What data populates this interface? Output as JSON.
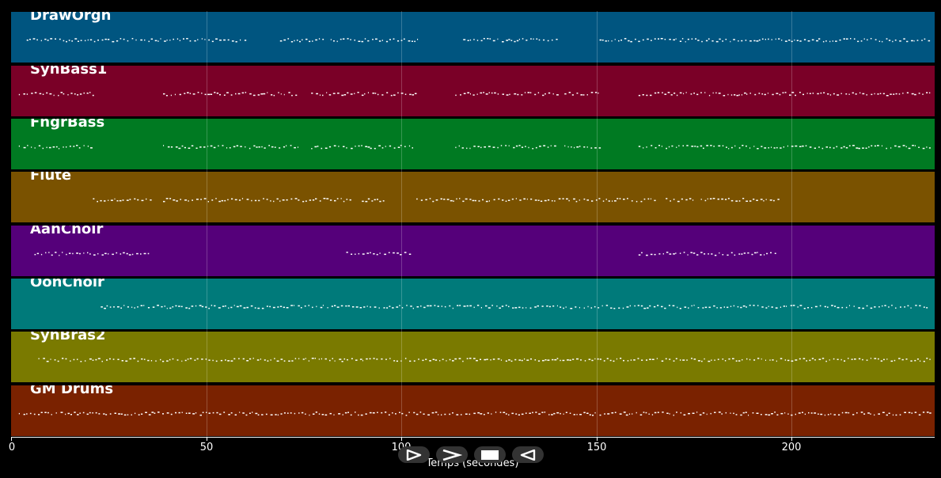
{
  "tracks": [
    {
      "name": "DrawOrgn",
      "color": "#005580"
    },
    {
      "name": "SynBass1",
      "color": "#7a0027"
    },
    {
      "name": "FngrBass",
      "color": "#007a22"
    },
    {
      "name": "Flute",
      "color": "#7a5200"
    },
    {
      "name": "AahChoir",
      "color": "#55007a"
    },
    {
      "name": "OohChoir",
      "color": "#007a7a"
    },
    {
      "name": "SynBras2",
      "color": "#7a7a00"
    },
    {
      "name": "GM Drums",
      "color": "#7a2200"
    }
  ],
  "note_color": "#ffffff",
  "chart_data": {
    "type": "piano-roll",
    "xlabel": "Temps (secondes)",
    "xlim": [
      0,
      237
    ],
    "xticks": [
      0,
      50,
      100,
      150,
      200
    ],
    "grid": true,
    "activity": [
      {
        "track": "DrawOrgn",
        "segments": [
          [
            4,
            60
          ],
          [
            69,
            80
          ],
          [
            82,
            105
          ],
          [
            116,
            140
          ],
          [
            151,
            236
          ]
        ]
      },
      {
        "track": "SynBass1",
        "segments": [
          [
            2,
            21
          ],
          [
            39,
            74
          ],
          [
            77,
            104
          ],
          [
            114,
            140
          ],
          [
            142,
            151
          ],
          [
            161,
            236
          ]
        ]
      },
      {
        "track": "FngrBass",
        "segments": [
          [
            2,
            21
          ],
          [
            39,
            74
          ],
          [
            77,
            104
          ],
          [
            114,
            140
          ],
          [
            142,
            151
          ],
          [
            161,
            236
          ]
        ]
      },
      {
        "track": "Flute",
        "segments": [
          [
            21,
            36
          ],
          [
            39,
            87
          ],
          [
            90,
            96
          ],
          [
            104,
            166
          ],
          [
            168,
            175
          ],
          [
            177,
            193
          ],
          [
            193,
            197
          ]
        ]
      },
      {
        "track": "AahChoir",
        "segments": [
          [
            6,
            36
          ],
          [
            86,
            103
          ],
          [
            161,
            196
          ]
        ]
      },
      {
        "track": "OohChoir",
        "segments": [
          [
            23,
            235
          ]
        ]
      },
      {
        "track": "SynBras2",
        "segments": [
          [
            7,
            236
          ]
        ]
      },
      {
        "track": "GM Drums",
        "segments": [
          [
            2,
            236
          ]
        ]
      }
    ]
  },
  "transport": {
    "play_icon": "play-icon",
    "forward_icon": "fast-forward-icon",
    "stop_icon": "stop-icon",
    "rewind_icon": "rewind-icon"
  }
}
